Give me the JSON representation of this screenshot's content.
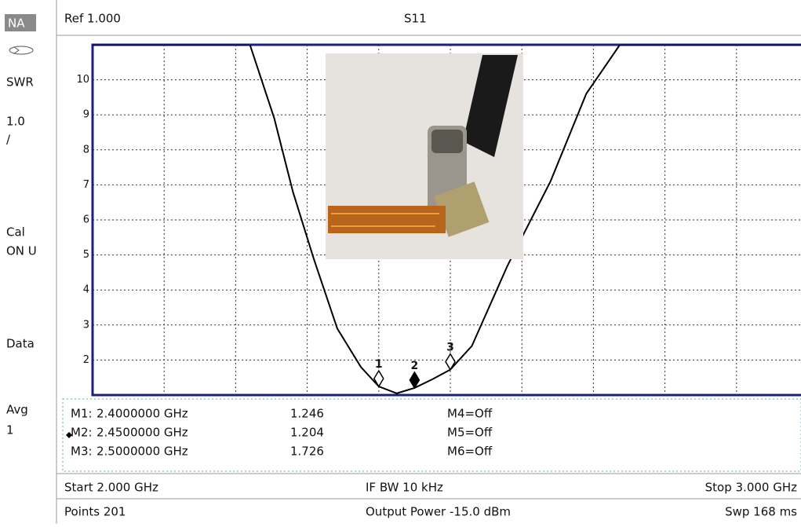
{
  "sidebar": {
    "items": [
      "NA",
      "SWR",
      "1.0",
      "/",
      "Cal",
      "ON U",
      "Data",
      "Avg",
      "1"
    ]
  },
  "header": {
    "ref": "Ref 1.000",
    "trace": "S11"
  },
  "chart_data": {
    "type": "line",
    "xlim": [
      2.0,
      3.0
    ],
    "xticks": [
      2.1,
      2.2,
      2.3,
      2.4,
      2.5,
      2.6,
      2.7,
      2.8,
      2.9
    ],
    "ylim": [
      1,
      11
    ],
    "yticks": [
      2,
      3,
      4,
      5,
      6,
      7,
      8,
      9,
      10
    ],
    "grid": true,
    "curve": {
      "color": "#000000",
      "x": [
        2.0,
        2.22,
        2.254,
        2.28,
        2.309,
        2.342,
        2.375,
        2.4,
        2.425,
        2.45,
        2.475,
        2.5,
        2.53,
        2.58,
        2.64,
        2.69,
        2.737,
        3.0
      ],
      "values": [
        11,
        11,
        8.9,
        6.8,
        4.9,
        2.9,
        1.8,
        1.246,
        1.05,
        1.204,
        1.45,
        1.726,
        2.4,
        4.7,
        7.1,
        9.6,
        11,
        11
      ]
    },
    "markers": {
      "labels": [
        "1",
        "2",
        "3"
      ],
      "x": [
        2.4,
        2.45,
        2.5
      ],
      "values": [
        1.246,
        1.204,
        1.726
      ]
    }
  },
  "marker_table": {
    "rows": [
      [
        "M1:",
        "2.4000000 GHz",
        "1.246",
        "M4=Off"
      ],
      [
        "M2:",
        "2.4500000 GHz",
        "1.204",
        "M5=Off"
      ],
      [
        "M3:",
        "2.5000000 GHz",
        "1.726",
        "M6=Off"
      ]
    ]
  },
  "footer": {
    "start": "Start 2.000 GHz",
    "ifbw": "IF BW 10 kHz",
    "stop": "Stop 3.000 GHz",
    "points": "Points 201",
    "power": "Output Power -15.0 dBm",
    "sweep": "Swp 168 ms"
  }
}
